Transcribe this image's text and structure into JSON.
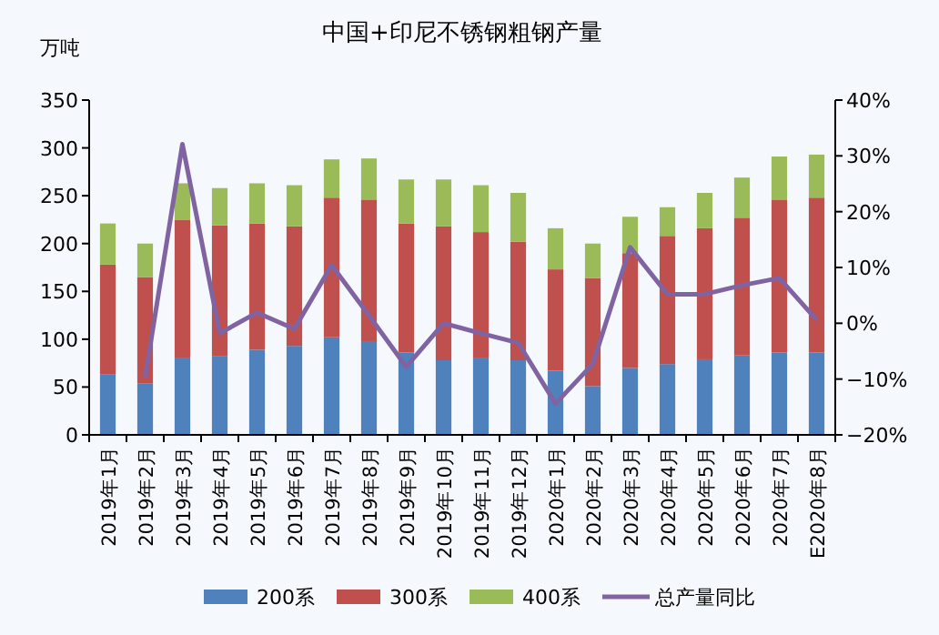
{
  "chart_data": {
    "type": "bar",
    "title": "中国+印尼不锈钢粗钢产量",
    "ylabel": "万吨",
    "stacked": true,
    "categories": [
      "2019年1月",
      "2019年2月",
      "2019年3月",
      "2019年4月",
      "2019年5月",
      "2019年6月",
      "2019年7月",
      "2019年8月",
      "2019年9月",
      "2019年10月",
      "2019年11月",
      "2019年12月",
      "2020年1月",
      "2020年2月",
      "2020年3月",
      "2020年4月",
      "2020年5月",
      "2020年6月",
      "2020年7月",
      "E2020年8月"
    ],
    "series": [
      {
        "name": "200系",
        "color": "#4f81bd",
        "values": [
          63,
          54,
          80,
          82,
          89,
          93,
          102,
          98,
          86,
          78,
          80,
          78,
          67,
          51,
          70,
          74,
          79,
          83,
          86,
          86
        ]
      },
      {
        "name": "300系",
        "color": "#c0504d",
        "values": [
          115,
          111,
          145,
          137,
          132,
          125,
          146,
          148,
          135,
          140,
          132,
          124,
          106,
          113,
          120,
          134,
          137,
          144,
          160,
          162
        ]
      },
      {
        "name": "400系",
        "color": "#9bbb59",
        "values": [
          43,
          35,
          38,
          39,
          42,
          43,
          40,
          43,
          46,
          49,
          49,
          51,
          43,
          36,
          38,
          30,
          37,
          42,
          45,
          45
        ]
      },
      {
        "name": "总产量同比",
        "color": "#8064a2",
        "type": "line",
        "axis": "y2",
        "values": [
          null,
          -9.7,
          32.1,
          -1.8,
          1.9,
          -1.0,
          10.4,
          1.4,
          -7.8,
          0.0,
          -1.8,
          -3.5,
          -14.4,
          -7.3,
          13.6,
          5.2,
          5.2,
          6.8,
          8.1,
          0.6
        ]
      }
    ],
    "ylim": [
      0,
      350
    ],
    "yticks": [
      0,
      50,
      100,
      150,
      200,
      250,
      300,
      350
    ],
    "y2lim": [
      -20,
      40
    ],
    "y2ticks": [
      {
        "value": -20,
        "label": "−20%"
      },
      {
        "value": -10,
        "label": "−10%"
      },
      {
        "value": 0,
        "label": "0%"
      },
      {
        "value": 10,
        "label": "10%"
      },
      {
        "value": 20,
        "label": "20%"
      },
      {
        "value": 30,
        "label": "30%"
      },
      {
        "value": 40,
        "label": "40%"
      }
    ],
    "legend": "bottom",
    "grid": false
  }
}
